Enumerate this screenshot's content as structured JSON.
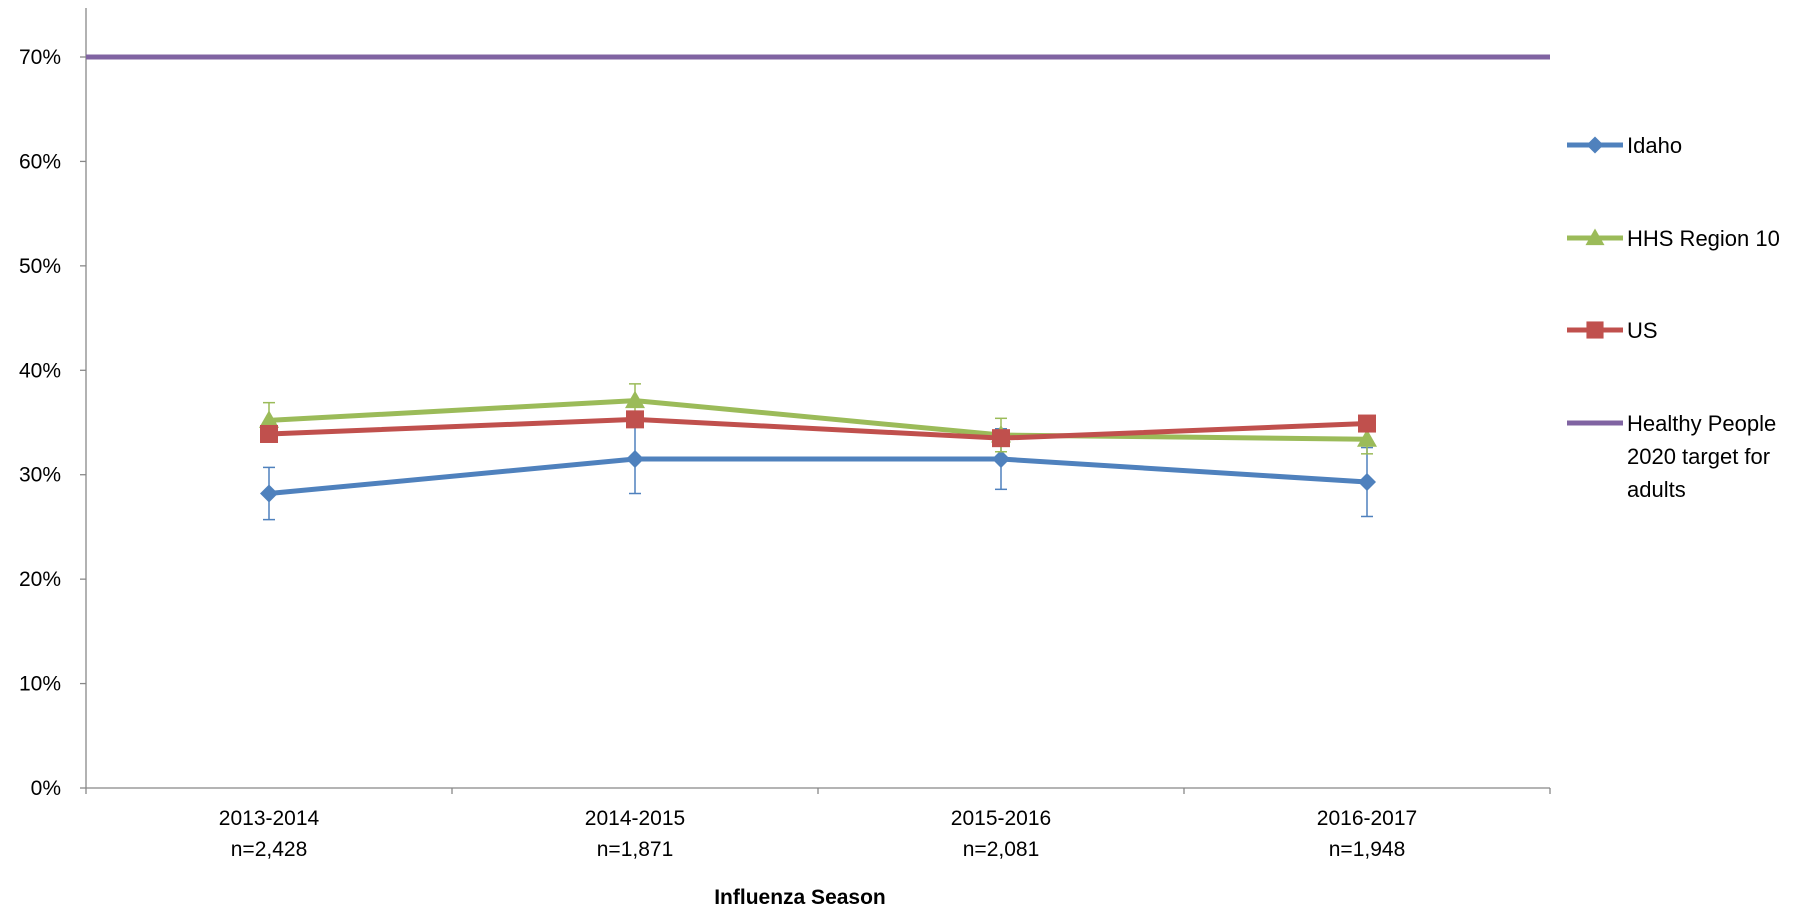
{
  "chart_data": {
    "type": "line",
    "title": "",
    "xlabel": "Influenza Season",
    "ylabel": "",
    "ylim": [
      0,
      0.7
    ],
    "yticks": [
      {
        "value": 0.0,
        "label": "0%"
      },
      {
        "value": 0.1,
        "label": "10%"
      },
      {
        "value": 0.2,
        "label": "20%"
      },
      {
        "value": 0.3,
        "label": "30%"
      },
      {
        "value": 0.4,
        "label": "40%"
      },
      {
        "value": 0.5,
        "label": "50%"
      },
      {
        "value": 0.6,
        "label": "60%"
      },
      {
        "value": 0.7,
        "label": "70%"
      }
    ],
    "categories": [
      {
        "season": "2013-2014",
        "n": "n=2,428"
      },
      {
        "season": "2014-2015",
        "n": "n=1,871"
      },
      {
        "season": "2015-2016",
        "n": "n=2,081"
      },
      {
        "season": "2016-2017",
        "n": "n=1,948"
      }
    ],
    "legend_position": "right",
    "grid": false,
    "series": [
      {
        "name": "Idaho",
        "color": "#4f81bd",
        "marker": "diamond",
        "values": [
          0.282,
          0.315,
          0.315,
          0.293
        ],
        "error_low": [
          0.257,
          0.282,
          0.286,
          0.26
        ],
        "error_high": [
          0.307,
          0.348,
          0.344,
          0.326
        ]
      },
      {
        "name": "HHS Region 10",
        "color": "#9bbb59",
        "marker": "triangle",
        "values": [
          0.352,
          0.371,
          0.338,
          0.334
        ],
        "error_low": [
          0.336,
          0.355,
          0.322,
          0.32
        ],
        "error_high": [
          0.369,
          0.387,
          0.354,
          0.35
        ]
      },
      {
        "name": "US",
        "color": "#c0504d",
        "marker": "square",
        "values": [
          0.339,
          0.353,
          0.335,
          0.349
        ]
      },
      {
        "name": "Healthy People 2020 target for adults",
        "legend_lines": [
          "Healthy People",
          "2020 target for",
          "adults"
        ],
        "color": "#8064a2",
        "marker": "none",
        "reference_value": 0.7
      }
    ]
  }
}
